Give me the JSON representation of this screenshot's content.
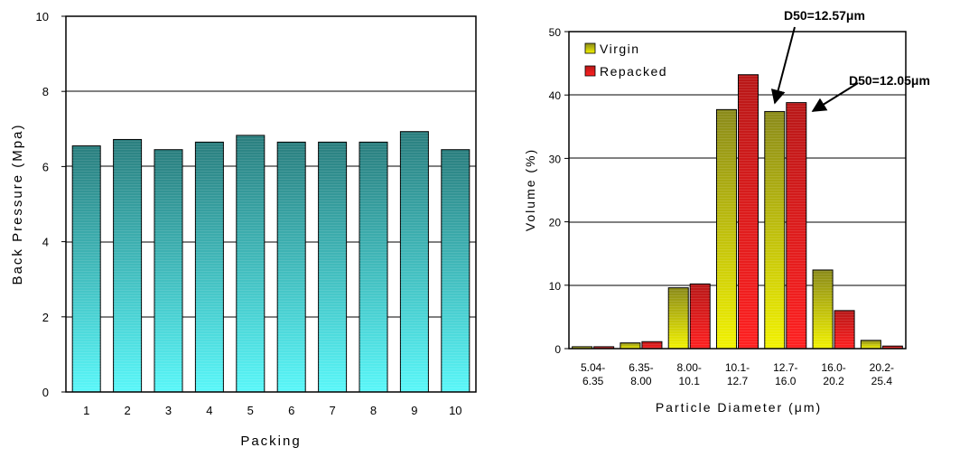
{
  "chart_data": [
    {
      "type": "bar",
      "categories": [
        "1",
        "2",
        "3",
        "4",
        "5",
        "6",
        "7",
        "8",
        "9",
        "10"
      ],
      "values": [
        6.55,
        6.72,
        6.45,
        6.65,
        6.83,
        6.65,
        6.65,
        6.65,
        6.93,
        6.45
      ],
      "xlabel": "Packing",
      "ylabel": "Back Pressure (Mpa)",
      "ylim": [
        0,
        10
      ],
      "yticks": [
        "0",
        "2",
        "4",
        "6",
        "8",
        "10"
      ],
      "grid": "horizontal at 2, 4, 6, 8",
      "colors": {
        "bar_top": "#2a7e7e",
        "bar_bottom": "#59f7f9"
      }
    },
    {
      "type": "bar",
      "categories": [
        "5.04-\n6.35",
        "6.35-\n8.00",
        "8.00-\n10.1",
        "10.1-\n12.7",
        "12.7-\n16.0",
        "16.0-\n20.2",
        "20.2-\n25.4"
      ],
      "series": [
        {
          "name": "Virgin",
          "values": [
            0.3,
            0.9,
            9.6,
            37.7,
            37.4,
            12.4,
            1.3
          ],
          "color_top": "#8a8a1a",
          "color_bottom": "#f2f200"
        },
        {
          "name": "Repacked",
          "values": [
            0.3,
            1.1,
            10.2,
            43.2,
            38.8,
            6.0,
            0.4
          ],
          "color_top": "#b81818",
          "color_bottom": "#ff2020"
        }
      ],
      "xlabel": "Particle Diameter (μm)",
      "ylabel": "Volume (%)",
      "ylim": [
        0,
        50
      ],
      "yticks": [
        "0",
        "10",
        "20",
        "30",
        "40",
        "50"
      ],
      "grid": "horizontal at 10, 20, 30, 40",
      "legend": "top-left",
      "annotations": [
        "D50=12.57μm",
        "D50=12.05μm"
      ]
    }
  ]
}
